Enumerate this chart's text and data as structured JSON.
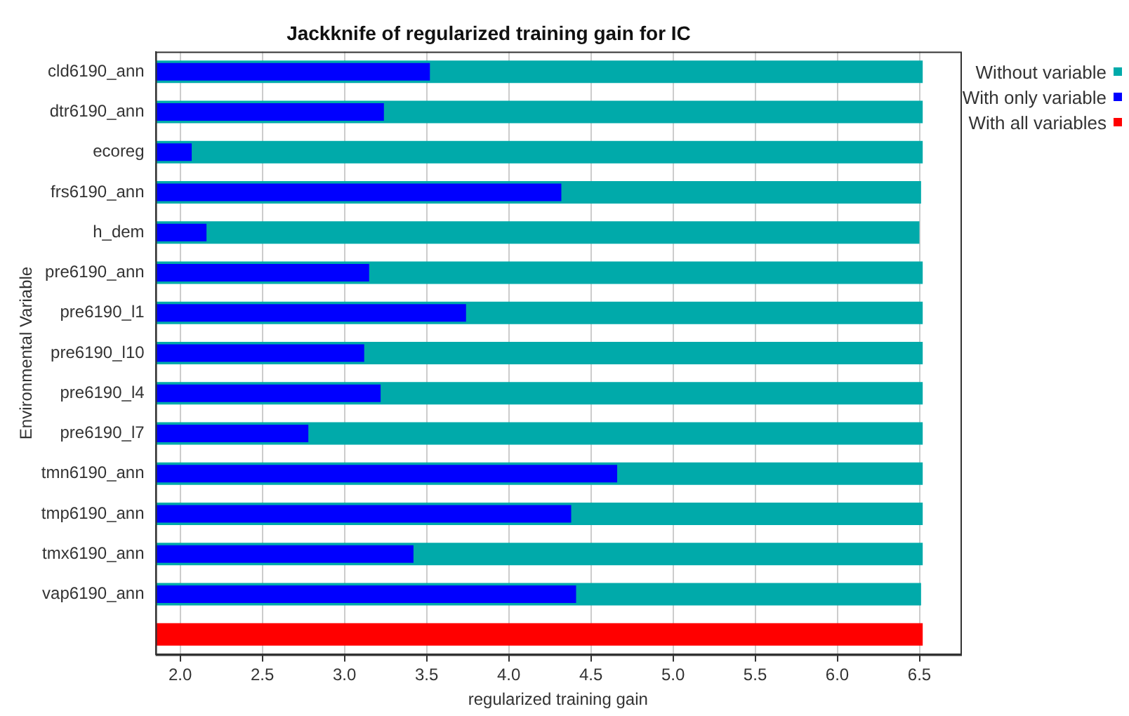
{
  "chart_data": {
    "type": "bar",
    "orientation": "horizontal",
    "title": "Jackknife of regularized training gain for IC",
    "xlabel": "regularized training gain",
    "ylabel": "Environmental Variable",
    "categories": [
      "cld6190_ann",
      "dtr6190_ann",
      "ecoreg",
      "frs6190_ann",
      "h_dem",
      "pre6190_ann",
      "pre6190_l1",
      "pre6190_l10",
      "pre6190_l4",
      "pre6190_l7",
      "tmn6190_ann",
      "tmp6190_ann",
      "tmx6190_ann",
      "vap6190_ann",
      null
    ],
    "series": [
      {
        "name": "Without variable",
        "color": "#00aaaa",
        "values": [
          6.52,
          6.52,
          6.52,
          6.51,
          6.5,
          6.52,
          6.52,
          6.52,
          6.52,
          6.52,
          6.52,
          6.52,
          6.52,
          6.51,
          null
        ]
      },
      {
        "name": "With only variable",
        "color": "#0000ff",
        "values": [
          3.52,
          3.24,
          2.07,
          4.32,
          2.16,
          3.15,
          3.74,
          3.12,
          3.22,
          2.78,
          4.66,
          4.38,
          3.42,
          4.41,
          null
        ]
      },
      {
        "name": "With all variables",
        "color": "#ff0000",
        "values": [
          null,
          null,
          null,
          null,
          null,
          null,
          null,
          null,
          null,
          null,
          null,
          null,
          null,
          null,
          6.52
        ]
      }
    ],
    "xlim": [
      1.85,
      6.75
    ],
    "xticks": [
      {
        "value": 2,
        "label": "2.0"
      },
      {
        "value": 2.5,
        "label": "2.5"
      },
      {
        "value": 3,
        "label": "3.0"
      },
      {
        "value": 3.5,
        "label": "3.5"
      },
      {
        "value": 4,
        "label": "4.0"
      },
      {
        "value": 4.5,
        "label": "4.5"
      },
      {
        "value": 5,
        "label": "5.0"
      },
      {
        "value": 5.5,
        "label": "5.5"
      },
      {
        "value": 6,
        "label": "6.0"
      },
      {
        "value": 6.5,
        "label": "6.5"
      }
    ],
    "grid": "x",
    "legend": "top right"
  }
}
